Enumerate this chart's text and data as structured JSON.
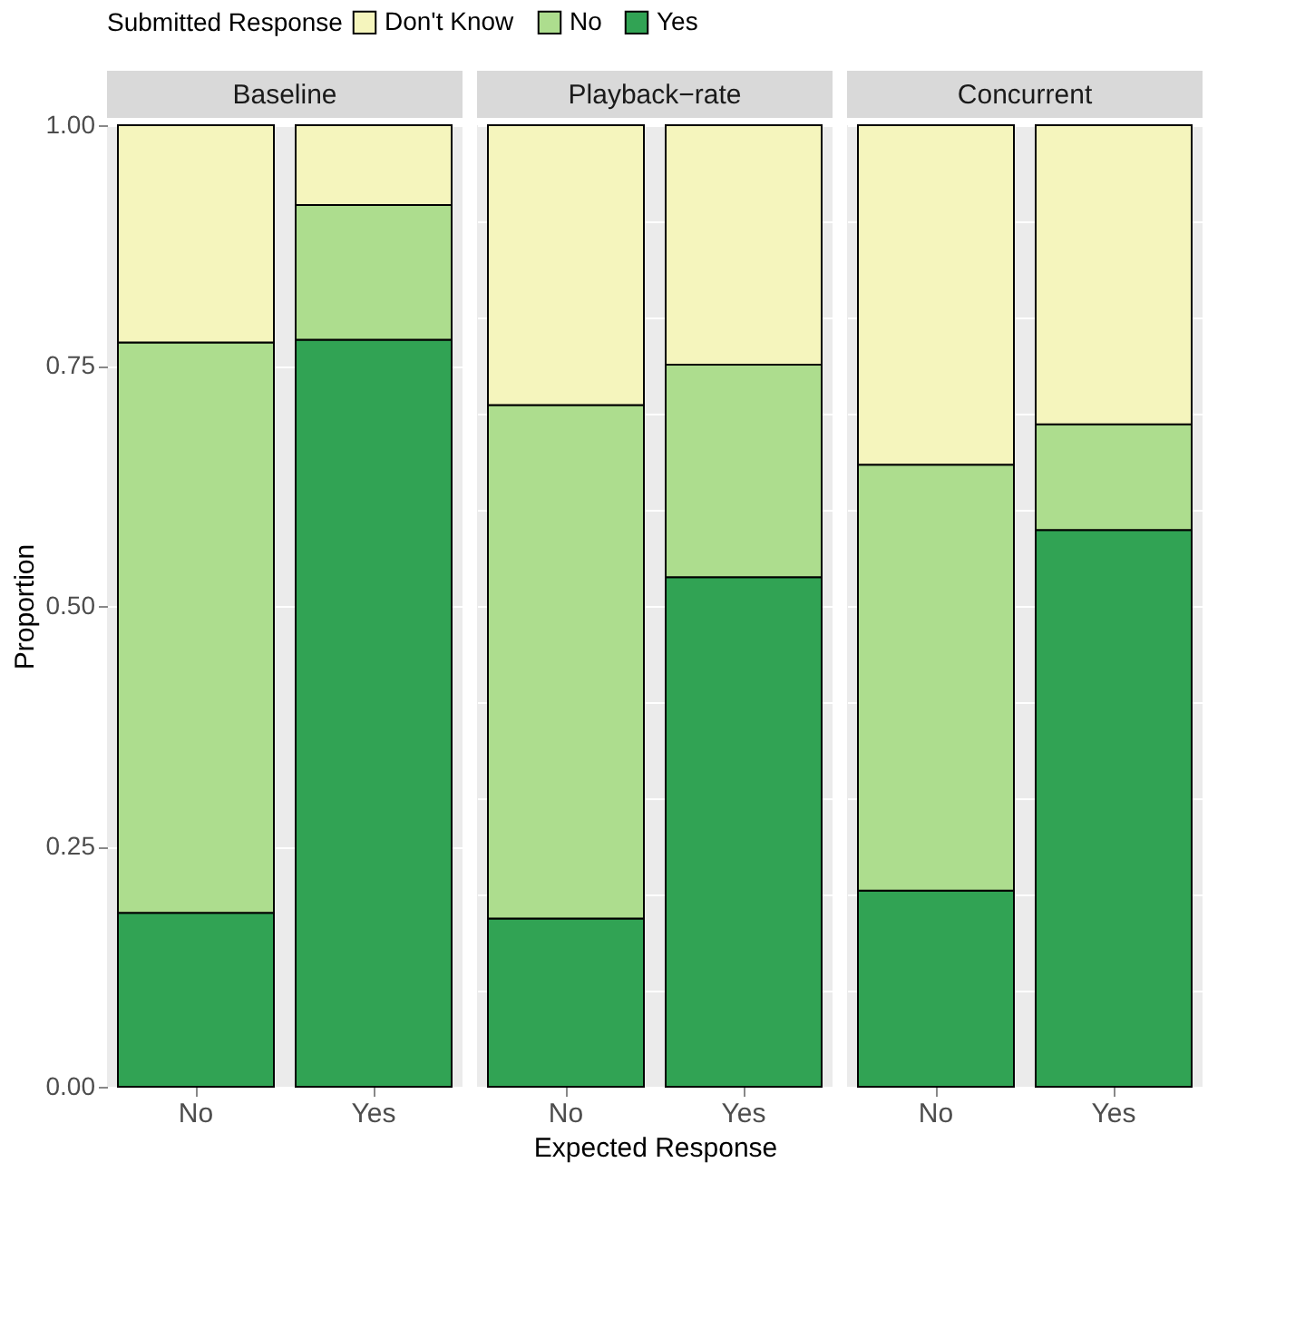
{
  "chart_data": [
    {
      "type": "bar",
      "title": "Baseline",
      "ylabel": "Proportion",
      "legend_title": "Submitted Response",
      "legend": "top",
      "stacked": true,
      "grid": true,
      "categories": [
        "No",
        "Yes"
      ],
      "ylim": [
        0,
        1
      ],
      "yticks": [
        {
          "value": 0,
          "label": "0.00"
        },
        {
          "value": 0.25,
          "label": "0.25"
        },
        {
          "value": 0.5,
          "label": "0.50"
        },
        {
          "value": 0.75,
          "label": "0.75"
        },
        {
          "value": 1,
          "label": "1.00"
        }
      ],
      "series": [
        {
          "name": "Yes",
          "color": "#31a354",
          "values": [
            0.181,
            0.777
          ]
        },
        {
          "name": "No",
          "color": "#addd8e",
          "values": [
            0.593,
            0.14
          ]
        },
        {
          "name": "Don't Know",
          "color": "#f5f5bd",
          "values": [
            0.226,
            0.083
          ]
        }
      ]
    },
    {
      "type": "bar",
      "title": "Playback−rate",
      "xlabel": "Expected Response",
      "stacked": true,
      "grid": true,
      "tick_labels": "x",
      "categories": [
        "No",
        "Yes"
      ],
      "ylim": [
        0,
        1
      ],
      "series": [
        {
          "name": "Yes",
          "color": "#31a354",
          "values": [
            0.175,
            0.53
          ]
        },
        {
          "name": "No",
          "color": "#addd8e",
          "values": [
            0.534,
            0.221
          ]
        },
        {
          "name": "Don't Know",
          "color": "#f5f5bd",
          "values": [
            0.291,
            0.249
          ]
        }
      ]
    },
    {
      "type": "bar",
      "title": "Concurrent",
      "stacked": true,
      "grid": true,
      "tick_labels": "x",
      "categories": [
        "No",
        "Yes"
      ],
      "ylim": [
        0,
        1
      ],
      "series": [
        {
          "name": "Yes",
          "color": "#31a354",
          "values": [
            0.204,
            0.579
          ]
        },
        {
          "name": "No",
          "color": "#addd8e",
          "values": [
            0.443,
            0.11
          ]
        },
        {
          "name": "Don't Know",
          "color": "#f5f5bd",
          "values": [
            0.353,
            0.311
          ]
        }
      ]
    }
  ]
}
